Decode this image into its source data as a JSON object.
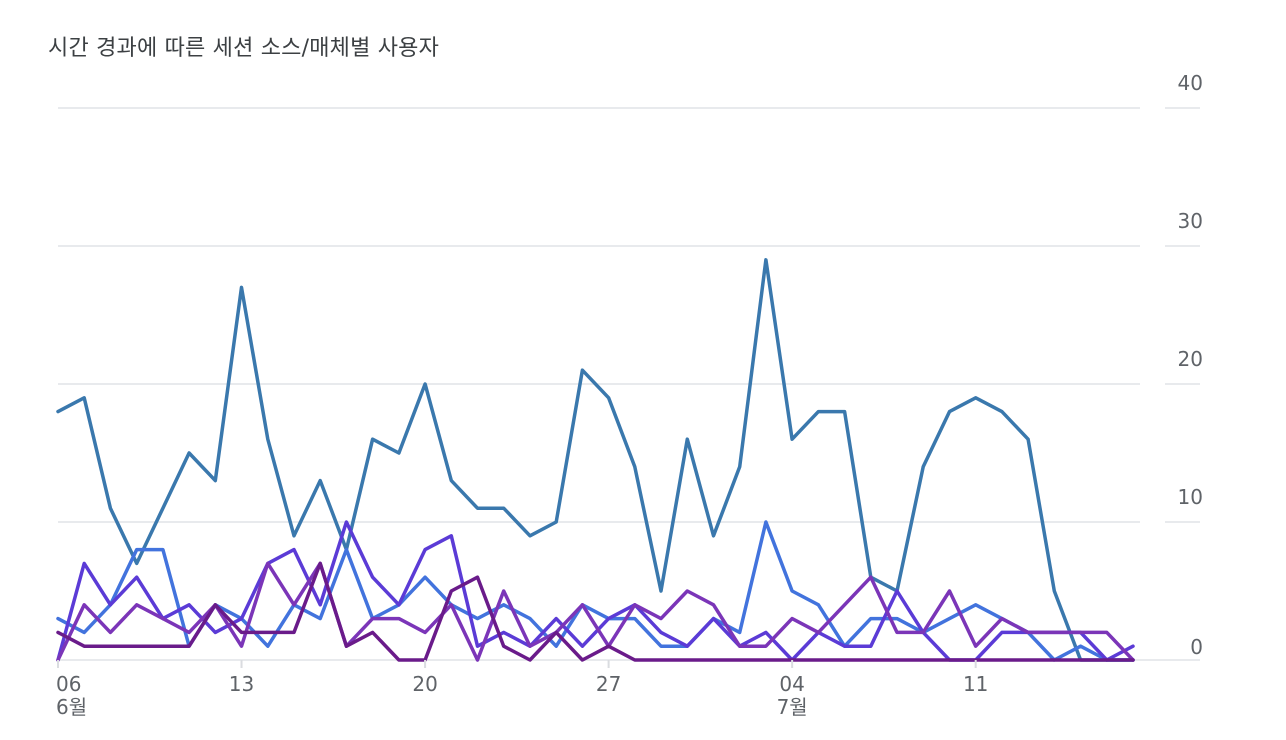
{
  "chart_data": {
    "type": "line",
    "title": "시간 경과에 따른 세션 소스/매체별 사용자",
    "xlabel": "",
    "ylabel": "",
    "ylim": [
      0,
      40
    ],
    "yticks": [
      0,
      10,
      20,
      30,
      40
    ],
    "y_axis_side": "right",
    "grid": true,
    "legend": "none",
    "x": [
      "06-06",
      "06-07",
      "06-08",
      "06-09",
      "06-10",
      "06-11",
      "06-12",
      "06-13",
      "06-14",
      "06-15",
      "06-16",
      "06-17",
      "06-18",
      "06-19",
      "06-20",
      "06-21",
      "06-22",
      "06-23",
      "06-24",
      "06-25",
      "06-26",
      "06-27",
      "06-28",
      "06-29",
      "06-30",
      "07-01",
      "07-02",
      "07-03",
      "07-04",
      "07-05",
      "07-06",
      "07-07",
      "07-08",
      "07-09",
      "07-10",
      "07-11",
      "07-12",
      "07-13",
      "07-14",
      "07-15",
      "07-16",
      "07-17"
    ],
    "x_tick_labels": [
      {
        "x": "06-06",
        "label": "06",
        "sublabel": "6월"
      },
      {
        "x": "06-13",
        "label": "13",
        "sublabel": ""
      },
      {
        "x": "06-20",
        "label": "20",
        "sublabel": ""
      },
      {
        "x": "06-27",
        "label": "27",
        "sublabel": ""
      },
      {
        "x": "07-04",
        "label": "04",
        "sublabel": "7월"
      },
      {
        "x": "07-11",
        "label": "11",
        "sublabel": ""
      }
    ],
    "series": [
      {
        "color": "#3a78ad",
        "values": [
          18,
          19,
          11,
          7,
          11,
          15,
          13,
          27,
          16,
          9,
          13,
          8,
          16,
          15,
          20,
          13,
          11,
          11,
          9,
          10,
          21,
          19,
          14,
          5,
          16,
          9,
          14,
          29,
          16,
          18,
          18,
          6,
          5,
          14,
          18,
          19,
          18,
          16,
          5,
          0,
          0,
          0
        ]
      },
      {
        "color": "#4273dd",
        "values": [
          3,
          2,
          4,
          8,
          8,
          1,
          4,
          3,
          1,
          4,
          3,
          8,
          3,
          4,
          6,
          4,
          3,
          4,
          3,
          1,
          4,
          3,
          3,
          1,
          1,
          3,
          2,
          10,
          5,
          4,
          1,
          3,
          3,
          2,
          3,
          4,
          3,
          2,
          0,
          1,
          0,
          0
        ]
      },
      {
        "color": "#5b3bd6",
        "values": [
          0,
          7,
          4,
          6,
          3,
          4,
          2,
          3,
          7,
          8,
          4,
          10,
          6,
          4,
          8,
          9,
          1,
          2,
          1,
          3,
          1,
          3,
          4,
          2,
          1,
          3,
          1,
          2,
          0,
          2,
          1,
          1,
          5,
          2,
          0,
          0,
          2,
          2,
          2,
          2,
          0,
          1
        ]
      },
      {
        "color": "#7b35b8",
        "values": [
          0,
          4,
          2,
          4,
          3,
          2,
          4,
          1,
          7,
          4,
          7,
          1,
          3,
          3,
          2,
          4,
          0,
          5,
          1,
          2,
          4,
          1,
          4,
          3,
          5,
          4,
          1,
          1,
          3,
          2,
          4,
          6,
          2,
          2,
          5,
          1,
          3,
          2,
          2,
          2,
          2,
          0
        ]
      },
      {
        "color": "#6a1b8a",
        "values": [
          2,
          1,
          1,
          1,
          1,
          1,
          4,
          2,
          2,
          2,
          7,
          1,
          2,
          0,
          0,
          5,
          6,
          1,
          0,
          2,
          0,
          1,
          0,
          0,
          0,
          0,
          0,
          0,
          0,
          0,
          0,
          0,
          0,
          0,
          0,
          0,
          0,
          0,
          0,
          0,
          0,
          0
        ]
      }
    ]
  }
}
